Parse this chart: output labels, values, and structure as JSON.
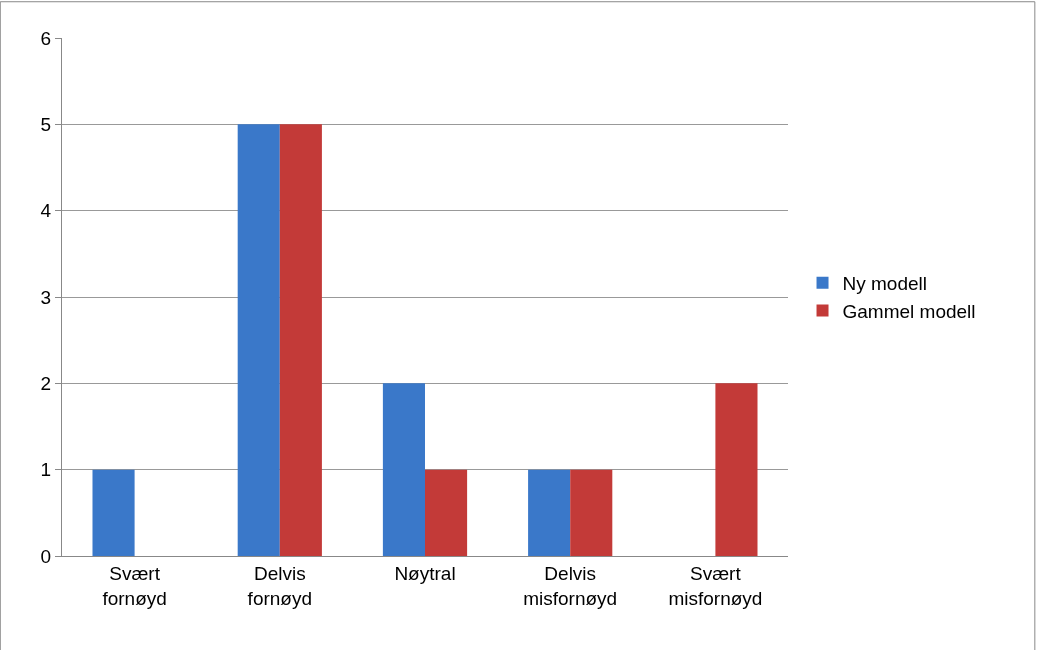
{
  "chart_data": {
    "type": "bar",
    "categories": [
      "Svært fornøyd",
      "Delvis fornøyd",
      "Nøytral",
      "Delvis misfornøyd",
      "Svært misfornøyd"
    ],
    "series": [
      {
        "name": "Ny modell",
        "color": "#3a78c9",
        "values": [
          1,
          5,
          2,
          1,
          0
        ]
      },
      {
        "name": "Gammel modell",
        "color": "#c33a38",
        "values": [
          0,
          5,
          1,
          1,
          2
        ]
      }
    ],
    "ylim": [
      0,
      6
    ],
    "yticks": [
      0,
      1,
      2,
      3,
      4,
      5,
      6
    ],
    "grid": "y",
    "legend": "right"
  }
}
